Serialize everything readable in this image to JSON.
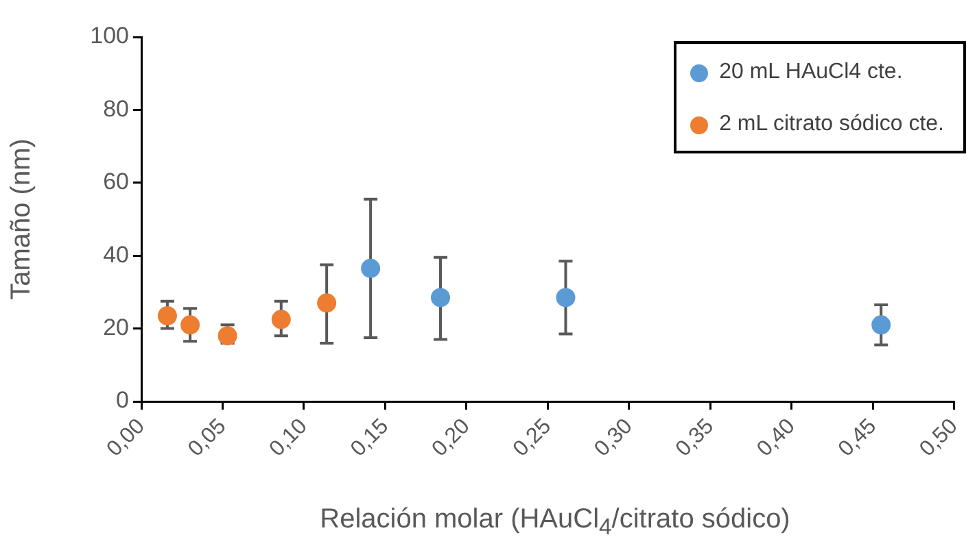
{
  "chart_data": {
    "type": "scatter",
    "xlabel": "Relación molar (HAuCl$_{4}$/citrato sódico)",
    "ylabel": "Tamaño (nm)",
    "series": [
      {
        "name": "20 mL HAuCl4 cte.",
        "color": "#5b9bd5",
        "x": [
          0.141,
          0.184,
          0.261,
          0.455
        ],
        "values": [
          36.5,
          28.5,
          28.5,
          21
        ],
        "errors": [
          [
            17.5,
            55.5
          ],
          [
            17,
            39.5
          ],
          [
            18.5,
            38.5
          ],
          [
            15.5,
            26.5
          ]
        ]
      },
      {
        "name": "2 mL citrato sódico cte.",
        "color": "#ed7d31",
        "x": [
          0.016,
          0.03,
          0.053,
          0.086,
          0.114
        ],
        "values": [
          23.5,
          21,
          18,
          22.5,
          27
        ],
        "errors": [
          [
            20,
            27.5
          ],
          [
            16.5,
            25.5
          ],
          [
            16,
            21
          ],
          [
            18,
            27.5
          ],
          [
            16,
            37.5
          ]
        ]
      }
    ],
    "xlim": [
      0,
      0.5
    ],
    "xticks": [
      {
        "value": 0,
        "label": "0,00"
      },
      {
        "value": 0.05,
        "label": "0,05"
      },
      {
        "value": 0.1,
        "label": "0,10"
      },
      {
        "value": 0.15,
        "label": "0,15"
      },
      {
        "value": 0.2,
        "label": "0,20"
      },
      {
        "value": 0.25,
        "label": "0,25"
      },
      {
        "value": 0.3,
        "label": "0,30"
      },
      {
        "value": 0.35,
        "label": "0,35"
      },
      {
        "value": 0.4,
        "label": "0,40"
      },
      {
        "value": 0.45,
        "label": "0,45"
      },
      {
        "value": 0.5,
        "label": "0,50"
      }
    ],
    "ylim": [
      0,
      100
    ],
    "yticks": [
      0,
      20,
      40,
      60,
      80,
      100
    ],
    "grid": false,
    "legend": "top right",
    "marker": "circle"
  }
}
